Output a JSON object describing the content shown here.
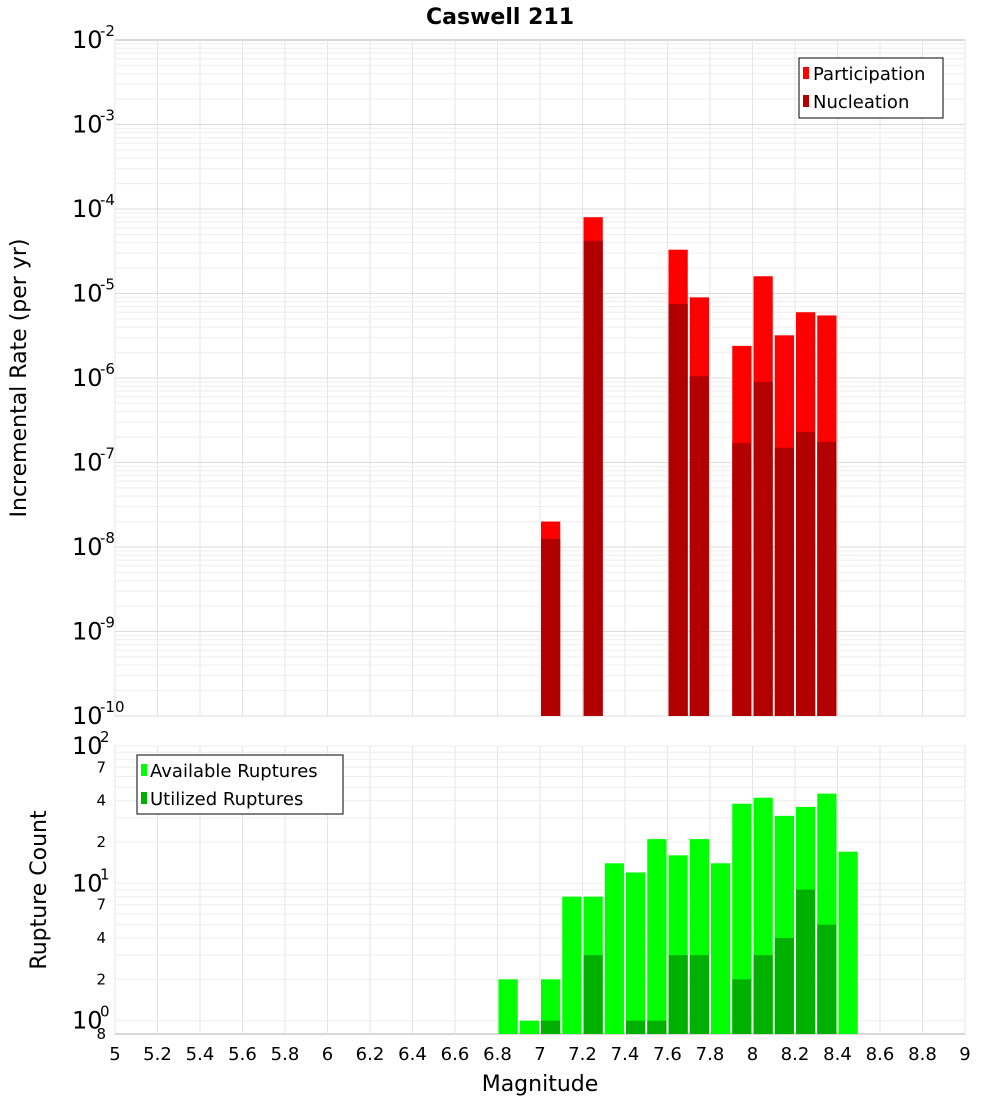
{
  "chart_data": [
    {
      "type": "bar",
      "title": "Caswell 211",
      "ylabel": "Incremental Rate (per yr)",
      "xlabel": "Magnitude",
      "xlim": [
        5,
        9
      ],
      "ylim": [
        1e-10,
        0.01
      ],
      "yscale": "log",
      "grid": true,
      "legend": "top-right",
      "x_ticks": [
        "5",
        "5.2",
        "5.4",
        "5.6",
        "5.8",
        "6",
        "6.2",
        "6.4",
        "6.6",
        "6.8",
        "7",
        "7.2",
        "7.4",
        "7.6",
        "7.8",
        "8",
        "8.2",
        "8.4",
        "8.6",
        "8.8",
        "9"
      ],
      "y_tick_labels": [
        {
          "base": "10",
          "exp": "-2"
        },
        {
          "base": "10",
          "exp": "-3"
        },
        {
          "base": "10",
          "exp": "-4"
        },
        {
          "base": "10",
          "exp": "-5"
        },
        {
          "base": "10",
          "exp": "-6"
        },
        {
          "base": "10",
          "exp": "-7"
        },
        {
          "base": "10",
          "exp": "-8"
        },
        {
          "base": "10",
          "exp": "-9"
        },
        {
          "base": "10",
          "exp": "-10"
        }
      ],
      "x": [
        7.05,
        7.25,
        7.65,
        7.75,
        7.95,
        8.05,
        8.15,
        8.25,
        8.35
      ],
      "series": [
        {
          "name": "Participation",
          "color": "#ff0000",
          "values": [
            2e-08,
            8e-05,
            3.3e-05,
            9e-06,
            2.4e-06,
            1.6e-05,
            3.2e-06,
            6e-06,
            5.5e-06
          ]
        },
        {
          "name": "Nucleation",
          "color": "#b20000",
          "values": [
            1.25e-08,
            4.2e-05,
            7.5e-06,
            1.05e-06,
            1.7e-07,
            9e-07,
            1.5e-07,
            2.3e-07,
            1.75e-07
          ]
        }
      ]
    },
    {
      "type": "bar",
      "ylabel": "Rupture Count",
      "xlabel": "Magnitude",
      "xlim": [
        5,
        9
      ],
      "ylim": [
        0.8,
        100
      ],
      "yscale": "log",
      "grid": true,
      "legend": "top-left",
      "y_tick_labels": [
        {
          "base": "10",
          "exp": "2"
        },
        {
          "base": "10",
          "exp": "1"
        },
        {
          "base": "10",
          "exp": "0"
        }
      ],
      "y_minor_labels": [
        "7",
        "4",
        "2",
        "7",
        "4",
        "2",
        "8"
      ],
      "x": [
        6.85,
        6.95,
        7.05,
        7.15,
        7.25,
        7.35,
        7.45,
        7.55,
        7.65,
        7.75,
        7.85,
        7.95,
        8.05,
        8.15,
        8.25,
        8.35,
        8.45
      ],
      "series": [
        {
          "name": "Available Ruptures",
          "color": "#00ff00",
          "values": [
            2,
            1,
            2,
            8,
            8,
            14,
            12,
            21,
            16,
            21,
            14,
            38,
            42,
            31,
            36,
            45,
            17
          ]
        },
        {
          "name": "Utilized Ruptures",
          "color": "#00b000",
          "values": [
            0,
            0,
            1,
            0,
            3,
            0,
            1,
            1,
            3,
            3,
            0,
            2,
            3,
            4,
            9,
            5,
            0
          ]
        }
      ]
    }
  ]
}
